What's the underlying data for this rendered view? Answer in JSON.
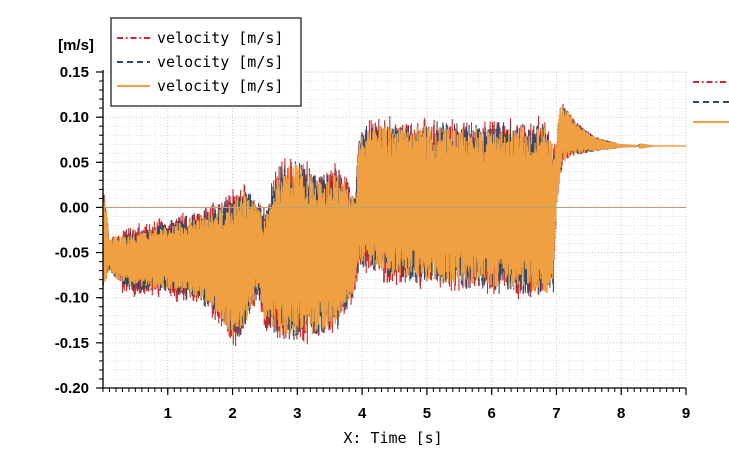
{
  "chart_data": {
    "type": "line",
    "ylabel": "[m/s]",
    "xlabel": "X: Time [s]",
    "xlim": [
      0,
      9
    ],
    "ylim": [
      -0.2,
      0.15
    ],
    "xticks": [
      1,
      2,
      3,
      4,
      5,
      6,
      7,
      8,
      9
    ],
    "yticks": [
      -0.2,
      -0.15,
      -0.1,
      -0.05,
      0.0,
      0.05,
      0.1,
      0.15
    ],
    "ytick_labels": [
      "-0.20",
      "-0.15",
      "-0.10",
      "-0.05",
      "0.00",
      "0.05",
      "0.10",
      "0.15"
    ],
    "grid": true,
    "legend_position": "top-left",
    "series": [
      {
        "name": "velocity [m/s]",
        "color": "#d62728",
        "style": "dash-dot"
      },
      {
        "name": "velocity [m/s]",
        "color": "#2e4a6b",
        "style": "dashed"
      },
      {
        "name": "velocity [m/s]",
        "color": "#f0a040",
        "style": "solid"
      }
    ],
    "envelope": {
      "t": [
        0.0,
        0.05,
        0.1,
        0.2,
        0.5,
        1.0,
        1.5,
        1.8,
        2.0,
        2.2,
        2.4,
        2.5,
        2.7,
        3.0,
        3.3,
        3.6,
        3.9,
        3.95,
        4.2,
        4.8,
        5.5,
        6.2,
        6.8,
        6.95,
        7.0,
        7.05,
        7.1,
        7.3,
        7.6,
        8.0,
        8.5,
        9.0
      ],
      "upper": [
        0.025,
        0.0,
        -0.035,
        -0.03,
        -0.03,
        -0.02,
        -0.01,
        0.0,
        0.01,
        0.02,
        0.0,
        -0.01,
        0.04,
        0.05,
        0.03,
        0.04,
        0.01,
        0.08,
        0.09,
        0.09,
        0.09,
        0.09,
        0.09,
        0.07,
        0.07,
        0.11,
        0.115,
        0.095,
        0.078,
        0.07,
        0.068,
        0.068
      ],
      "lower": [
        -0.09,
        -0.08,
        -0.07,
        -0.08,
        -0.09,
        -0.09,
        -0.1,
        -0.12,
        -0.145,
        -0.13,
        -0.09,
        -0.13,
        -0.14,
        -0.145,
        -0.14,
        -0.13,
        -0.09,
        -0.06,
        -0.07,
        -0.08,
        -0.085,
        -0.09,
        -0.095,
        -0.095,
        0.0,
        0.03,
        0.05,
        0.058,
        0.062,
        0.066,
        0.068,
        0.068
      ]
    }
  }
}
